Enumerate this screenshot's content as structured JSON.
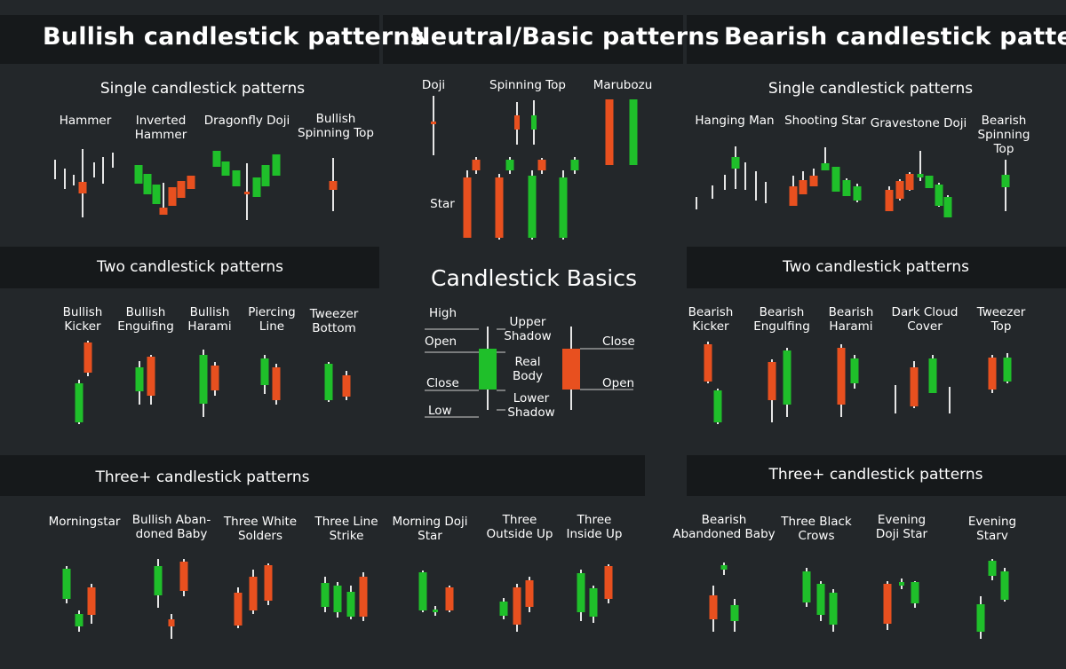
{
  "colors": {
    "bullish": "#1fbf2a",
    "bearish": "#e8501f",
    "wick": "#e6e6e6",
    "background": "#23272a",
    "band": "#16191b"
  },
  "headers": {
    "bullish": "Bullish candlestick patterns",
    "neutral": "Neutral/Basic patterns",
    "bearish": "Bearish candlestick patterns"
  },
  "bullish": {
    "single": {
      "title": "Single candlestick patterns",
      "patterns": [
        {
          "name": "Hammer"
        },
        {
          "name": "Inverted\nHammer"
        },
        {
          "name": "Dragonfly Doji"
        },
        {
          "name": "Bullish\nSpinning Top"
        }
      ]
    },
    "two": {
      "title": "Two candlestick patterns",
      "patterns": [
        {
          "name": "Bullish\nKicker"
        },
        {
          "name": "Bullish\nEnguifing"
        },
        {
          "name": "Bullish\nHarami"
        },
        {
          "name": "Piercing\nLine"
        },
        {
          "name": "Tweezer\nBottom"
        }
      ]
    },
    "three": {
      "title": "Three+ candlestick patterns",
      "patterns": [
        {
          "name": "Morningstar"
        },
        {
          "name": "Bullish Aban-\ndoned Baby"
        },
        {
          "name": "Three White\nSolders"
        },
        {
          "name": "Three Line\nStrike"
        },
        {
          "name": "Morning Doji\nStar"
        },
        {
          "name": "Three\nOutside Up"
        },
        {
          "name": "Three\nInside Up"
        }
      ]
    }
  },
  "neutral": {
    "patterns": [
      {
        "name": "Doji"
      },
      {
        "name": "Spinning Top"
      },
      {
        "name": "Marubozu"
      },
      {
        "name": "Star"
      }
    ],
    "basics": {
      "title": "Candlestick Basics",
      "high": "High",
      "open_left": "Open",
      "close_left": "Close",
      "low": "Low",
      "upper_shadow": "Upper\nShadow",
      "real_body": "Real\nBody",
      "lower_shadow": "Lower\nShadow",
      "close_right": "Close",
      "open_right": "Open"
    }
  },
  "bearish": {
    "single": {
      "title": "Single candlestick patterns",
      "patterns": [
        {
          "name": "Hanging Man"
        },
        {
          "name": "Shooting Star"
        },
        {
          "name": "Gravestone Doji"
        },
        {
          "name": "Bearish\nSpinning Top"
        }
      ]
    },
    "two": {
      "title": "Two candlestick patterns",
      "patterns": [
        {
          "name": "Bearish\nKicker"
        },
        {
          "name": "Bearish\nEngulfing"
        },
        {
          "name": "Bearish\nHarami"
        },
        {
          "name": "Dark Cloud\nCover"
        },
        {
          "name": "Tweezer\nTop"
        }
      ]
    },
    "three": {
      "title": "Three+ candlestick patterns",
      "patterns": [
        {
          "name": "Bearish\nAbandoned Baby"
        },
        {
          "name": "Three Black\nCrows"
        },
        {
          "name": "Evening\nDoji Star"
        },
        {
          "name": "Evening\nStarv"
        }
      ]
    }
  }
}
